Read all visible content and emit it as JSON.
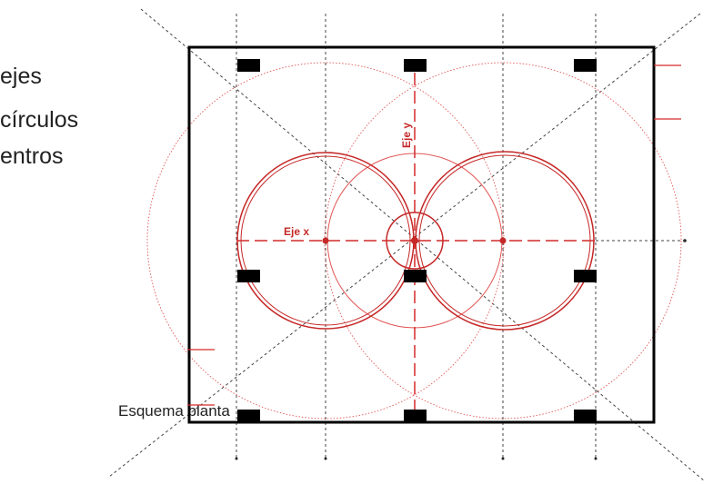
{
  "legend": {
    "lines": [
      "ejes",
      "círculos",
      "entros"
    ]
  },
  "caption": "Esquema planta",
  "axis_labels": {
    "x": "Eje x",
    "y": "Eje y"
  },
  "colors": {
    "plan_outline": "#000000",
    "columns": "#000000",
    "axis_red": "#d42a2a",
    "circle_red": "#c62828",
    "faint_red": "#e25555",
    "guide_gray": "#444444"
  }
}
